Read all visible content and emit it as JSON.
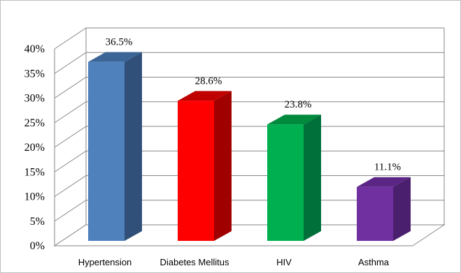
{
  "chart_data": {
    "type": "bar",
    "title": "",
    "xlabel": "",
    "ylabel": "",
    "categories": [
      "Hypertension",
      "Diabetes Mellitus",
      "HIV",
      "Asthma"
    ],
    "values": [
      36.5,
      28.6,
      23.8,
      11.1
    ],
    "data_labels": [
      "36.5%",
      "28.6%",
      "23.8%",
      "11.1%"
    ],
    "ylim": [
      0,
      40
    ],
    "yticks": [
      0,
      5,
      10,
      15,
      20,
      25,
      30,
      35,
      40
    ],
    "ytick_labels": [
      "0%",
      "5%",
      "10%",
      "15%",
      "20%",
      "25%",
      "30%",
      "35%",
      "40%"
    ],
    "grid": true,
    "legend": "none",
    "three_d": true,
    "bar_colors": [
      "#4f81bd",
      "#ff0000",
      "#00b050",
      "#7030a0"
    ],
    "bar_side_colors": [
      "#30507a",
      "#a00000",
      "#00703a",
      "#4a1f6e"
    ],
    "bar_top_colors": [
      "#3a6596",
      "#c00000",
      "#008a3e",
      "#5a2585"
    ]
  }
}
